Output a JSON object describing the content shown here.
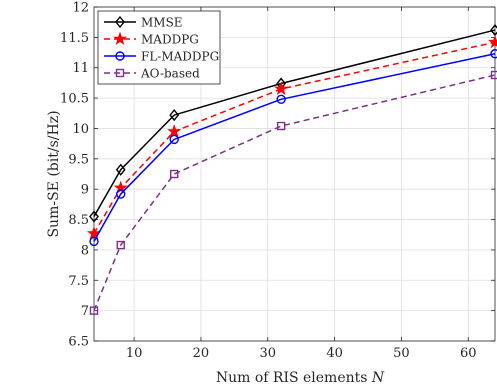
{
  "chart_data": {
    "type": "line",
    "title": "",
    "xlabel": "Num of RIS elements N",
    "xlabel_main": "Num of RIS elements ",
    "xlabel_var": "N",
    "ylabel": "Sum-SE (bit/s/Hz)",
    "xlim": [
      4,
      64
    ],
    "ylim": [
      6.5,
      12
    ],
    "xticks": [
      10,
      20,
      30,
      40,
      50,
      60
    ],
    "yticks": [
      6.5,
      7,
      7.5,
      8,
      8.5,
      9,
      9.5,
      10,
      10.5,
      11,
      11.5,
      12
    ],
    "grid": true,
    "legend_position": "top-left",
    "x": [
      4,
      8,
      16,
      32,
      64
    ],
    "series": [
      {
        "name": "MMSE",
        "values": [
          8.55,
          9.32,
          10.22,
          10.74,
          11.62
        ],
        "color": "#000000",
        "line_style": "solid",
        "marker": "diamond"
      },
      {
        "name": "MADDPG",
        "values": [
          8.27,
          9.02,
          9.95,
          10.65,
          11.42
        ],
        "color": "#ff0000",
        "line_style": "dashed",
        "marker": "star"
      },
      {
        "name": "FL-MADDPG",
        "values": [
          8.14,
          8.92,
          9.82,
          10.48,
          11.23
        ],
        "color": "#0000ff",
        "line_style": "solid",
        "marker": "circle"
      },
      {
        "name": "AO-based",
        "values": [
          7.0,
          8.08,
          9.25,
          10.04,
          10.88
        ],
        "color": "#7e2f8e",
        "line_style": "dashed",
        "marker": "square"
      }
    ]
  }
}
